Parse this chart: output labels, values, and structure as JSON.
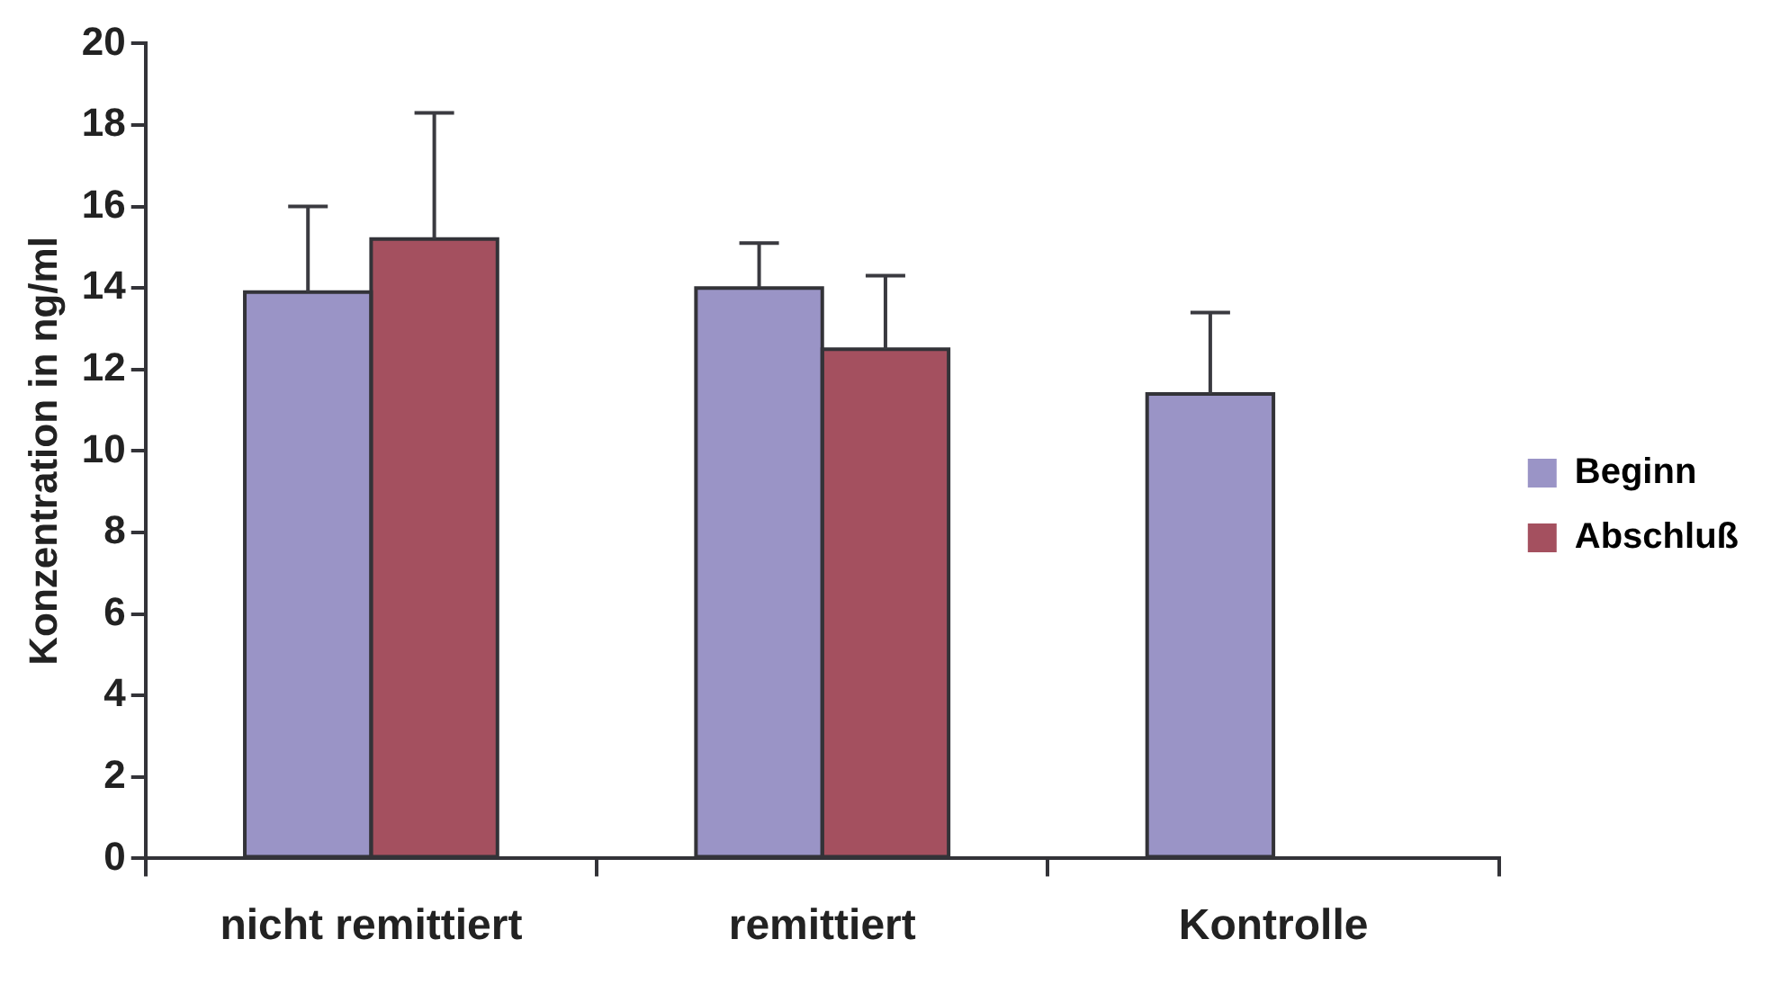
{
  "chart_data": {
    "type": "bar",
    "ylabel": "Konzentration in ng/ml",
    "categories": [
      "nicht remittiert",
      "remittiert",
      "Kontrolle"
    ],
    "series": [
      {
        "name": "Beginn",
        "color": "#9a94c6",
        "values": [
          13.9,
          14.0,
          11.4
        ],
        "errors": [
          [
            13.9,
            16.0
          ],
          [
            14.0,
            15.1
          ],
          [
            11.4,
            13.4
          ]
        ]
      },
      {
        "name": "Abschluß",
        "color": "#a4505f",
        "values": [
          15.2,
          12.5,
          null
        ],
        "errors": [
          [
            15.2,
            18.3
          ],
          [
            12.5,
            14.3
          ],
          null
        ]
      }
    ],
    "ylim": [
      0,
      20
    ],
    "yticks": [
      0,
      2,
      4,
      6,
      8,
      10,
      12,
      14,
      16,
      18,
      20
    ],
    "grid": false,
    "legend": "right"
  }
}
